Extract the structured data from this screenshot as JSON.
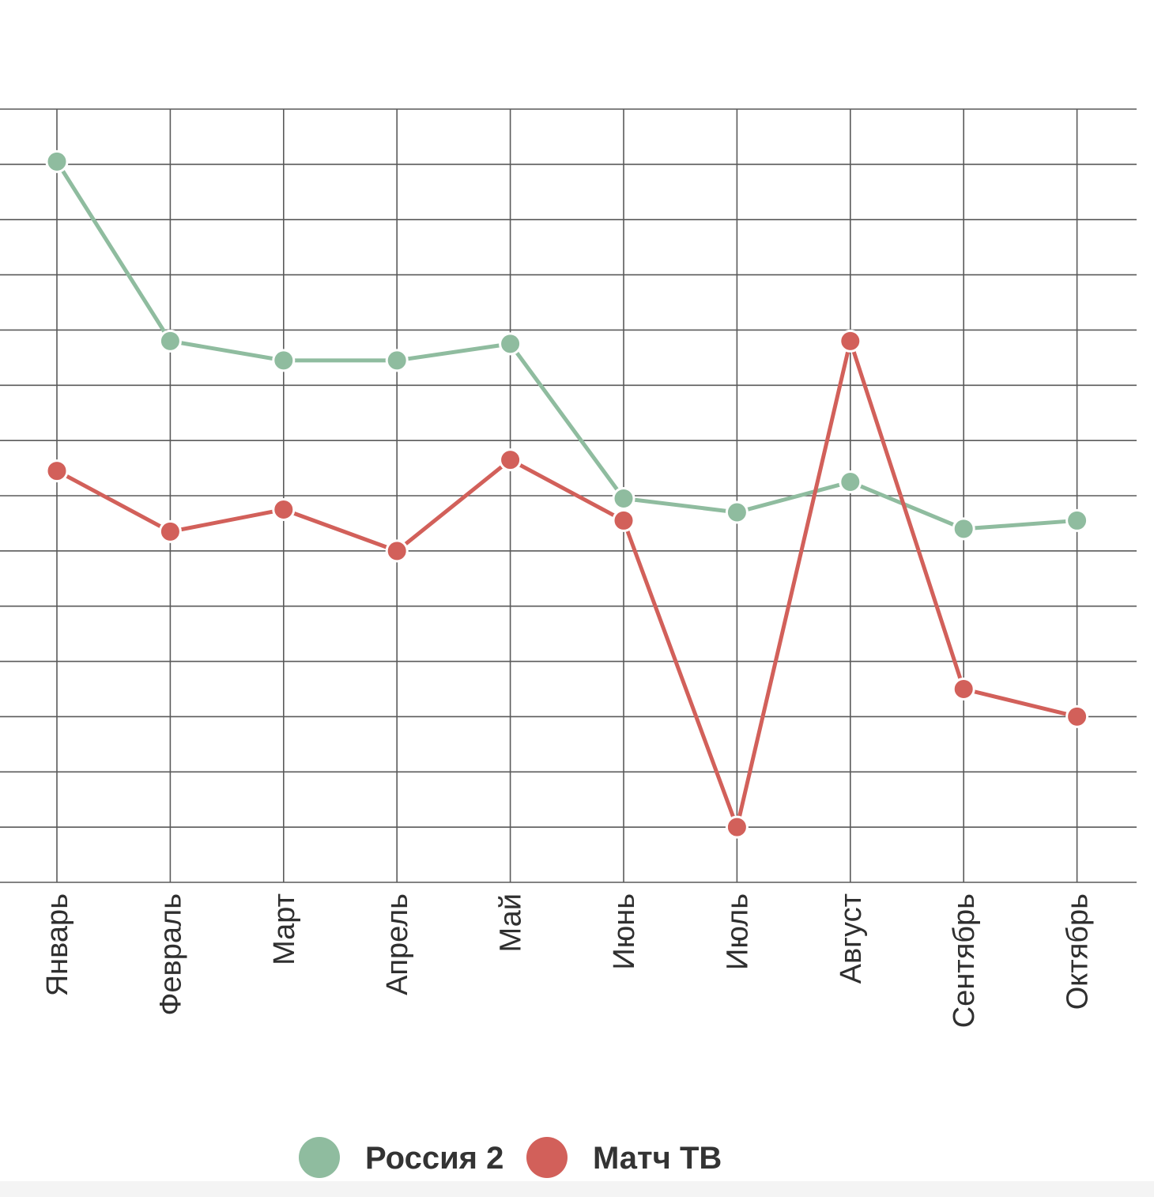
{
  "chart_data": {
    "type": "line",
    "title": "",
    "xlabel": "",
    "ylabel": "",
    "categories": [
      "Январь",
      "Февраль",
      "Март",
      "Апрель",
      "Май",
      "Июнь",
      "Июль",
      "Август",
      "Сентябрь",
      "Октябрь"
    ],
    "ylim": [
      0,
      14
    ],
    "grid": true,
    "legend_position": "bottom-center",
    "series": [
      {
        "name": "Россия 2",
        "color": "#8fbc9f",
        "values": [
          13.05,
          9.8,
          9.45,
          9.45,
          9.75,
          6.95,
          6.7,
          7.25,
          6.4,
          6.55
        ]
      },
      {
        "name": "Матч ТВ",
        "color": "#d2605a",
        "values": [
          7.45,
          6.35,
          6.75,
          6.0,
          7.65,
          6.55,
          1.0,
          9.8,
          3.5,
          3.0
        ]
      }
    ]
  }
}
